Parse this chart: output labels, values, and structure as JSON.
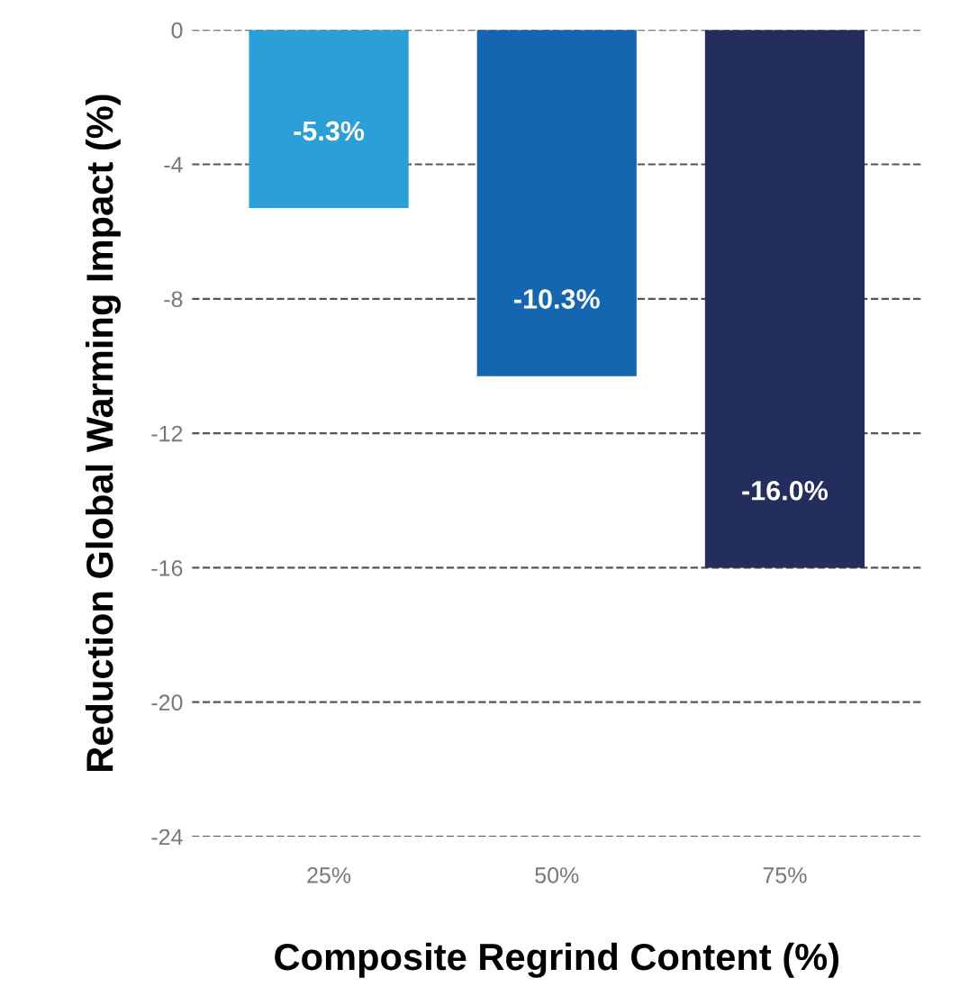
{
  "chart_data": {
    "type": "bar",
    "xlabel": "Composite Regrind Content (%)",
    "ylabel": "Reduction Global Warming Impact (%)",
    "categories": [
      "25%",
      "50%",
      "75%"
    ],
    "values": [
      -5.3,
      -10.3,
      -16.0
    ],
    "colors": [
      "#2a9fd8",
      "#1566b0",
      "#232d5e"
    ],
    "value_labels": [
      "-5.3%",
      "-10.3%",
      "-16.0%"
    ],
    "ylim": [
      -24,
      0
    ],
    "yticks": [
      {
        "value": 0,
        "label": "0"
      },
      {
        "value": -4,
        "label": "-4"
      },
      {
        "value": -8,
        "label": "-8"
      },
      {
        "value": -12,
        "label": "-12"
      },
      {
        "value": -16,
        "label": "-16"
      },
      {
        "value": -20,
        "label": "-20"
      },
      {
        "value": -24,
        "label": "-24"
      }
    ],
    "grid": "y"
  }
}
